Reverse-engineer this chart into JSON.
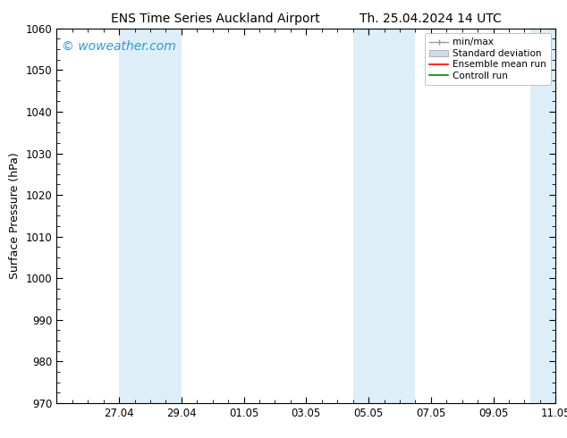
{
  "title_left": "ENS Time Series Auckland Airport",
  "title_right": "Th. 25.04.2024 14 UTC",
  "ylabel": "Surface Pressure (hPa)",
  "ylim": [
    970,
    1060
  ],
  "yticks": [
    970,
    980,
    990,
    1000,
    1010,
    1020,
    1030,
    1040,
    1050,
    1060
  ],
  "xlim_start": 0,
  "xlim_end": 16,
  "xtick_labels": [
    "27.04",
    "29.04",
    "01.05",
    "03.05",
    "05.05",
    "07.05",
    "09.05",
    "11.05"
  ],
  "xtick_positions": [
    2,
    4,
    6,
    8,
    10,
    12,
    14,
    16
  ],
  "watermark": "© woweather.com",
  "watermark_color": "#3399cc",
  "bg_color": "#ffffff",
  "plot_bg_color": "#ffffff",
  "shaded_bands": [
    {
      "x_start": 2.0,
      "x_end": 4.0,
      "color": "#ddeef8"
    },
    {
      "x_start": 9.5,
      "x_end": 11.5,
      "color": "#ddeef8"
    },
    {
      "x_start": 15.2,
      "x_end": 16.0,
      "color": "#ddeef8"
    }
  ],
  "legend_items": [
    {
      "label": "min/max",
      "type": "minmax",
      "color": "#aaaaaa"
    },
    {
      "label": "Standard deviation",
      "type": "stddev",
      "color": "#ccdde8"
    },
    {
      "label": "Ensemble mean run",
      "type": "line",
      "color": "#ff0000"
    },
    {
      "label": "Controll run",
      "type": "line",
      "color": "#008800"
    }
  ],
  "title_fontsize": 10,
  "axis_label_fontsize": 9,
  "tick_label_fontsize": 8.5,
  "watermark_fontsize": 10,
  "legend_fontsize": 7.5,
  "spine_color": "#000000",
  "minor_tick_count": 3
}
